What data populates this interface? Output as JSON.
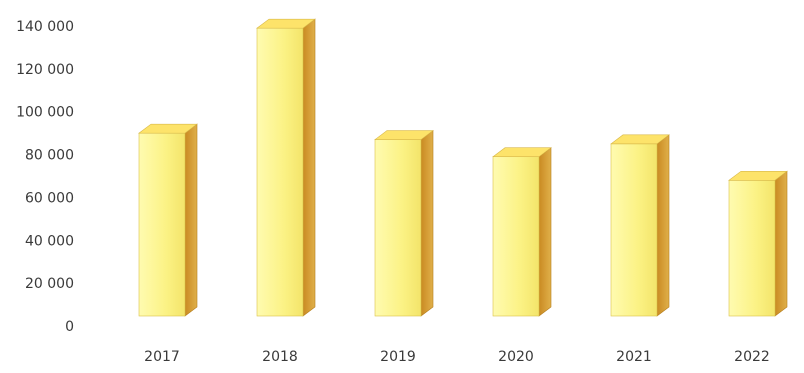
{
  "chart_data": {
    "type": "bar",
    "categories": [
      "2017",
      "2018",
      "2019",
      "2020",
      "2021",
      "2022"
    ],
    "series": [
      {
        "values": [
          90000,
          139000,
          87000,
          79000,
          85000,
          68000
        ]
      }
    ],
    "title": "",
    "xlabel": "",
    "ylabel": "",
    "ylim": [
      0,
      140000
    ],
    "yticks": [
      0,
      20000,
      40000,
      60000,
      80000,
      100000,
      120000,
      140000
    ],
    "ytick_labels": [
      "0",
      "20 000",
      "40 000",
      "60 000",
      "80 000",
      "100 000",
      "120 000",
      "140 000"
    ],
    "grid": false,
    "legend": "none",
    "style": "3d-bars",
    "colors": {
      "bar_front": "#fbf284",
      "bar_top": "#fde36a",
      "bar_side": "#d49a2e",
      "axis_text": "#3a3a3a"
    }
  }
}
